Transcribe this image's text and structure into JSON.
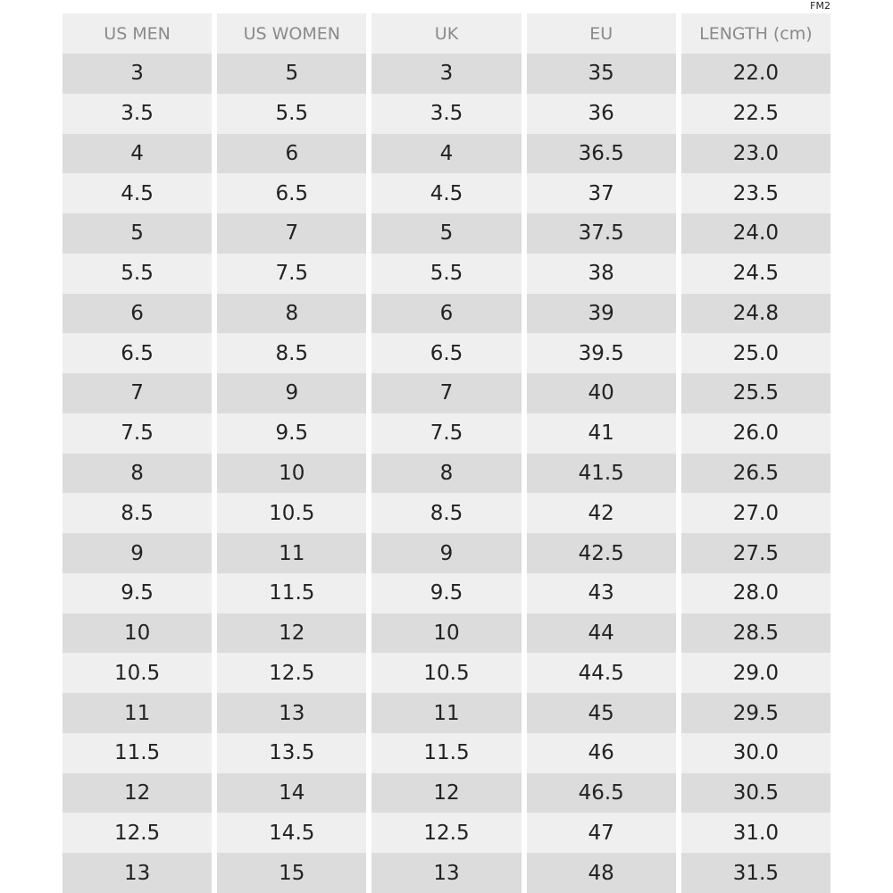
{
  "code": "FM2",
  "table": {
    "header": [
      "US MEN",
      "US WOMEN",
      "UK",
      "EU",
      "LENGTH (cm)"
    ],
    "rows": [
      [
        "3",
        "5",
        "3",
        "35",
        "22.0"
      ],
      [
        "3.5",
        "5.5",
        "3.5",
        "36",
        "22.5"
      ],
      [
        "4",
        "6",
        "4",
        "36.5",
        "23.0"
      ],
      [
        "4.5",
        "6.5",
        "4.5",
        "37",
        "23.5"
      ],
      [
        "5",
        "7",
        "5",
        "37.5",
        "24.0"
      ],
      [
        "5.5",
        "7.5",
        "5.5",
        "38",
        "24.5"
      ],
      [
        "6",
        "8",
        "6",
        "39",
        "24.8"
      ],
      [
        "6.5",
        "8.5",
        "6.5",
        "39.5",
        "25.0"
      ],
      [
        "7",
        "9",
        "7",
        "40",
        "25.5"
      ],
      [
        "7.5",
        "9.5",
        "7.5",
        "41",
        "26.0"
      ],
      [
        "8",
        "10",
        "8",
        "41.5",
        "26.5"
      ],
      [
        "8.5",
        "10.5",
        "8.5",
        "42",
        "27.0"
      ],
      [
        "9",
        "11",
        "9",
        "42.5",
        "27.5"
      ],
      [
        "9.5",
        "11.5",
        "9.5",
        "43",
        "28.0"
      ],
      [
        "10",
        "12",
        "10",
        "44",
        "28.5"
      ],
      [
        "10.5",
        "12.5",
        "10.5",
        "44.5",
        "29.0"
      ],
      [
        "11",
        "13",
        "11",
        "45",
        "29.5"
      ],
      [
        "11.5",
        "13.5",
        "11.5",
        "46",
        "30.0"
      ],
      [
        "12",
        "14",
        "12",
        "46.5",
        "30.5"
      ],
      [
        "12.5",
        "14.5",
        "12.5",
        "47",
        "31.0"
      ],
      [
        "13",
        "15",
        "13",
        "48",
        "31.5"
      ]
    ]
  }
}
